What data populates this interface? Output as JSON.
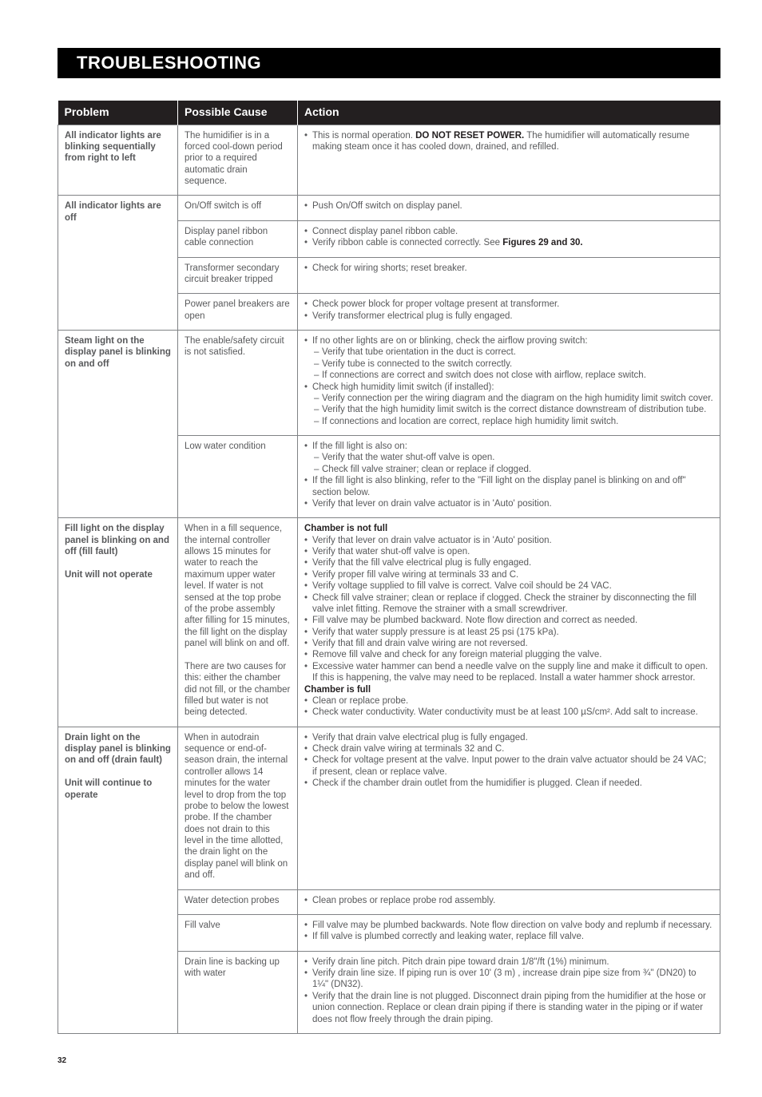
{
  "section_title": "TROUBLESHOOTING",
  "page_number": "32",
  "headers": {
    "problem": "Problem",
    "cause": "Possible Cause",
    "action": "Action"
  },
  "rows": [
    {
      "problem": "All indicator lights are blinking sequentially from right to left",
      "cause": "The humidifier is in a forced cool-down period prior to a required automatic drain sequence.",
      "action_html": "<ul class='actions'><li>This is normal operation. <span class='action-strong'>DO NOT RESET POWER.</span> The humidifier will automatically resume making steam once it has cooled down, drained, and refilled.</li></ul>"
    },
    {
      "problem": "All indicator lights are off",
      "problem_rowspan": 4,
      "cause": "On/Off switch is off",
      "action_html": "<ul class='actions'><li>Push On/Off switch on display panel.</li></ul>"
    },
    {
      "cause": "Display panel ribbon cable connection",
      "action_html": "<ul class='actions'><li>Connect display panel ribbon cable.</li><li>Verify ribbon cable is connected correctly. See <span class='action-strong'>Figures 29 and 30.</span></li></ul>"
    },
    {
      "cause": "Transformer secondary circuit breaker tripped",
      "action_html": "<ul class='actions'><li>Check for wiring shorts; reset breaker.</li></ul>"
    },
    {
      "cause": "Power panel breakers are open",
      "action_html": "<ul class='actions'><li>Check power block for proper voltage present at transformer.</li><li>Verify transformer electrical plug is fully engaged.</li></ul>"
    },
    {
      "problem": "Steam light on the display panel is blinking on and off",
      "problem_rowspan": 2,
      "cause": "The enable/safety circuit is not satisfied.",
      "action_html": "<ul class='actions'><li>If no other lights are on or blinking, check the airflow proving switch:<ul class='sub'><li>Verify that tube orientation in the duct is correct.</li><li>Verify tube is connected to the switch correctly.</li><li>If connections are correct and switch does not close with airflow, replace switch.</li></ul></li><li>Check high humidity limit switch (if installed):<ul class='sub'><li>Verify connection per the wiring diagram and the diagram on the high humidity limit switch cover.</li><li>Verify that the high humidity limit switch is the correct distance downstream of distribution tube.</li><li>If connections and location are correct, replace high humidity limit switch.</li></ul></li></ul>"
    },
    {
      "cause": "Low water condition",
      "action_html": "<ul class='actions'><li>If the fill light is also on:<ul class='sub'><li>Verify that the water shut-off valve is open.</li><li>Check fill valve strainer; clean or replace if clogged.</li></ul></li><li>If the fill light is also blinking, refer to the \"Fill light on the display panel is blinking on and off\" section below.</li><li>Verify that lever on drain valve actuator is in 'Auto' position.</li></ul>"
    },
    {
      "problem": "Fill light on the display panel is blinking on and off (fill fault)<br><br>Unit will not operate",
      "cause": "When in a fill sequence, the internal controller allows 15 minutes for water to reach the maximum upper water level. If water is not sensed at the top probe of the probe assembly after filling for 15 minutes, the fill light on the display panel will blink on and off.<br><br>There are two causes for this: either the chamber did not fill, or the chamber filled but water is not being detected.",
      "action_html": "<span class='action-strong'>Chamber is not full</span><ul class='actions'><li>Verify that lever on drain valve actuator is in 'Auto' position.</li><li>Verify that water shut-off valve is open.</li><li>Verify that the fill valve electrical plug is fully engaged.</li><li>Verify proper fill valve wiring at terminals 33 and C.</li><li>Verify voltage supplied to fill valve is correct. Valve coil should be 24 VAC.</li><li>Check fill valve strainer; clean or replace if clogged. Check the strainer by disconnecting the fill valve inlet fitting. Remove the strainer with a small screwdriver.</li><li>Fill valve may be plumbed backward. Note flow direction and correct as needed.</li><li>Verify that water supply pressure is at least 25 psi (175 kPa).</li><li>Verify that fill and drain valve wiring are not reversed.</li><li>Remove fill valve and check for any foreign material plugging the valve.</li><li>Excessive water hammer can bend a needle valve on the supply line and make it difficult to open. If this is happening, the valve may need to be replaced. Install a water hammer shock arrestor.</li></ul><span class='action-strong'>Chamber is full</span><ul class='actions'><li>Clean or replace probe.</li><li>Check water conductivity. Water conductivity must be at least 100 µS/cm². Add salt to increase.</li></ul>"
    },
    {
      "problem": "Drain light on the display panel is blinking on and off (drain fault)<br><br>Unit will continue to operate",
      "problem_rowspan": 4,
      "cause": "When in autodrain sequence or end-of-season drain, the internal controller allows 14 minutes for the water level to drop from the top probe to below the lowest probe. If the chamber does not drain to this level in the time allotted, the drain light on the display panel will blink on and off.",
      "action_html": "<ul class='actions'><li>Verify that drain valve electrical plug is fully engaged.</li><li>Check drain valve wiring at terminals 32 and C.</li><li>Check for voltage present at the valve. Input power to the drain valve actuator should be 24 VAC; if present, clean or replace valve.</li><li>Check if the chamber drain outlet from the humidifier is plugged. Clean if needed.</li></ul>"
    },
    {
      "cause": "Water detection probes",
      "action_html": "<ul class='actions'><li>Clean probes or replace probe rod assembly.</li></ul>"
    },
    {
      "cause": "Fill valve",
      "action_html": "<ul class='actions'><li>Fill valve may be plumbed backwards. Note flow direction on valve body and replumb if necessary.</li><li>If fill valve is plumbed correctly and leaking water, replace fill valve.</li></ul>"
    },
    {
      "cause": "Drain line is backing up with water",
      "action_html": "<ul class='actions'><li>Verify drain line pitch. Pitch drain pipe toward drain 1/8\"/ft (1%) minimum.</li><li>Verify drain line size. If piping run is over 10' (3 m) , increase drain pipe size from ¾\" (DN20) to 1¼\" (DN32).</li><li>Verify that the drain line is not plugged. Disconnect drain piping from the humidifier at the hose or union connection. Replace or clean drain piping if there is standing water in the piping or if water does not flow freely through the drain piping.</li></ul>"
    }
  ]
}
